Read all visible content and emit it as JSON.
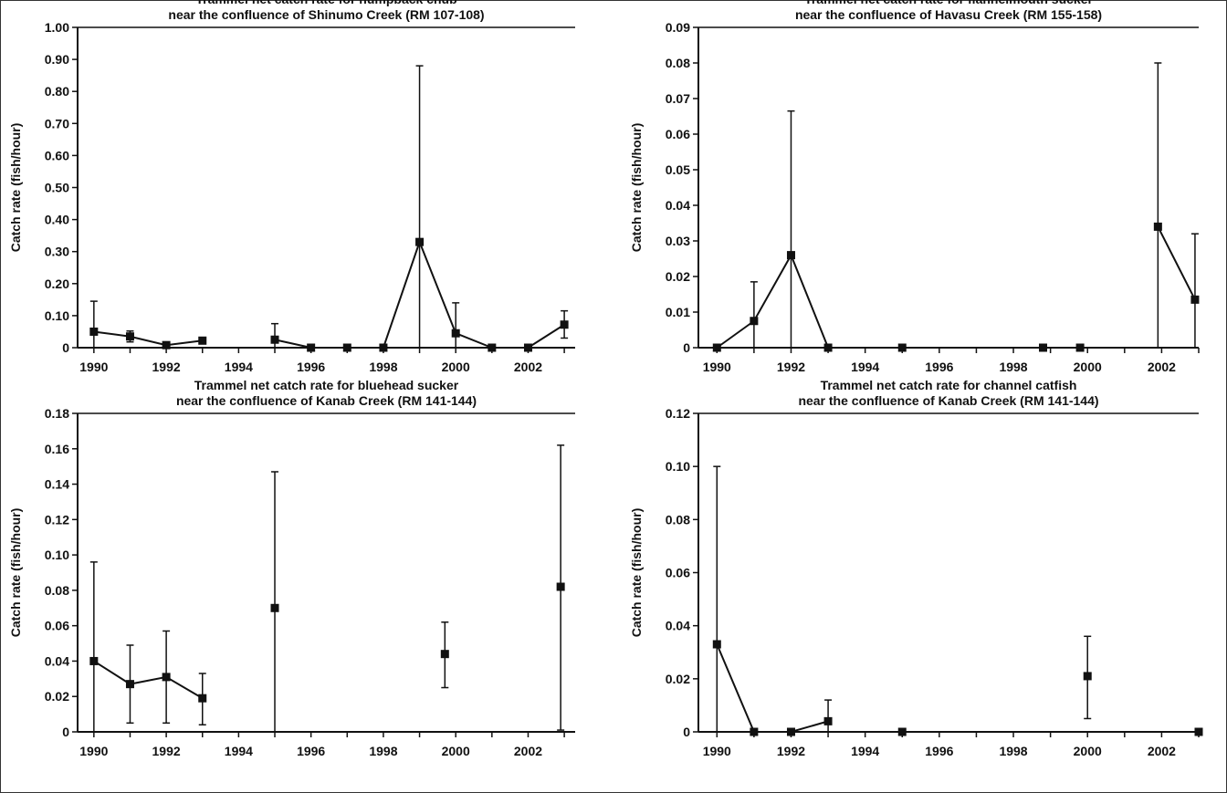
{
  "chart_data": [
    {
      "type": "line",
      "title": [
        "Trammel net catch rate for humpback chub",
        "near the confluence of Shinumo Creek (RM 107-108)"
      ],
      "xlabel": "",
      "ylabel": "Catch rate (fish/hour)",
      "xlim": [
        1989.55,
        2003.3
      ],
      "ylim": [
        0,
        1.0
      ],
      "xticks": [
        1990,
        1992,
        1994,
        1996,
        1998,
        2000,
        2002
      ],
      "yticks": [
        "0",
        "0.10",
        "0.20",
        "0.30",
        "0.40",
        "0.50",
        "0.60",
        "0.70",
        "0.80",
        "0.90",
        "1.00"
      ],
      "ytick_values": [
        0,
        0.1,
        0.2,
        0.3,
        0.4,
        0.5,
        0.6,
        0.7,
        0.8,
        0.9,
        1.0
      ],
      "segments": [
        [
          0,
          3
        ],
        [
          4,
          12
        ]
      ],
      "points": [
        {
          "x": 1990,
          "y": 0.05,
          "lo": 0,
          "hi": 0.145
        },
        {
          "x": 1991,
          "y": 0.035,
          "lo": 0.018,
          "hi": 0.052
        },
        {
          "x": 1992,
          "y": 0.008
        },
        {
          "x": 1993,
          "y": 0.022,
          "lo": 0.012,
          "hi": 0.032
        },
        {
          "x": 1995,
          "y": 0.025,
          "lo": 0,
          "hi": 0.075
        },
        {
          "x": 1996,
          "y": 0
        },
        {
          "x": 1997,
          "y": 0
        },
        {
          "x": 1998,
          "y": 0
        },
        {
          "x": 1999,
          "y": 0.33,
          "lo": 0,
          "hi": 0.88
        },
        {
          "x": 2000,
          "y": 0.045,
          "lo": 0,
          "hi": 0.14
        },
        {
          "x": 2001,
          "y": 0
        },
        {
          "x": 2002,
          "y": 0
        },
        {
          "x": 2003,
          "y": 0.072,
          "lo": 0.03,
          "hi": 0.115
        }
      ]
    },
    {
      "type": "line",
      "title": [
        "Trammel net catch rate for flannelmouth sucker",
        "near the confluence of Havasu Creek (RM 155-158)"
      ],
      "xlabel": "",
      "ylabel": "Catch rate (fish/hour)",
      "xlim": [
        1989.5,
        2003.0
      ],
      "ylim": [
        0,
        0.09
      ],
      "xticks": [
        1990,
        1992,
        1994,
        1996,
        1998,
        2000,
        2002
      ],
      "yticks": [
        "0",
        "0.01",
        "0.02",
        "0.03",
        "0.04",
        "0.05",
        "0.06",
        "0.07",
        "0.08",
        "0.09"
      ],
      "ytick_values": [
        0,
        0.01,
        0.02,
        0.03,
        0.04,
        0.05,
        0.06,
        0.07,
        0.08,
        0.09
      ],
      "segments": [
        [
          0,
          3
        ],
        [
          7,
          8
        ]
      ],
      "points": [
        {
          "x": 1990,
          "y": 0
        },
        {
          "x": 1991,
          "y": 0.0075,
          "lo": 0,
          "hi": 0.0185
        },
        {
          "x": 1992,
          "y": 0.026,
          "lo": 0,
          "hi": 0.0665
        },
        {
          "x": 1993,
          "y": 0
        },
        {
          "x": 1995,
          "y": 0
        },
        {
          "x": 1998.8,
          "y": 0
        },
        {
          "x": 1999.8,
          "y": 0
        },
        {
          "x": 2001.9,
          "y": 0.034,
          "lo": 0,
          "hi": 0.08
        },
        {
          "x": 2002.9,
          "y": 0.0135,
          "lo": 0,
          "hi": 0.032
        }
      ]
    },
    {
      "type": "line",
      "title": [
        "Trammel net catch rate for bluehead sucker",
        "near the confluence of Kanab Creek (RM 141-144)"
      ],
      "xlabel": "",
      "ylabel": "Catch rate (fish/hour)",
      "xlim": [
        1989.55,
        2003.3
      ],
      "ylim": [
        0,
        0.18
      ],
      "xticks": [
        1990,
        1992,
        1994,
        1996,
        1998,
        2000,
        2002
      ],
      "yticks": [
        "0",
        "0.02",
        "0.04",
        "0.06",
        "0.08",
        "0.10",
        "0.12",
        "0.14",
        "0.16",
        "0.18"
      ],
      "ytick_values": [
        0,
        0.02,
        0.04,
        0.06,
        0.08,
        0.1,
        0.12,
        0.14,
        0.16,
        0.18
      ],
      "segments": [
        [
          0,
          3
        ]
      ],
      "points": [
        {
          "x": 1990,
          "y": 0.04,
          "lo": 0,
          "hi": 0.096
        },
        {
          "x": 1991,
          "y": 0.027,
          "lo": 0.005,
          "hi": 0.049
        },
        {
          "x": 1992,
          "y": 0.031,
          "lo": 0.005,
          "hi": 0.057
        },
        {
          "x": 1993,
          "y": 0.019,
          "lo": 0.004,
          "hi": 0.033
        },
        {
          "x": 1995,
          "y": 0.07,
          "lo": 0,
          "hi": 0.147
        },
        {
          "x": 1999.7,
          "y": 0.044,
          "lo": 0.025,
          "hi": 0.062
        },
        {
          "x": 2002.9,
          "y": 0.082,
          "lo": 0.001,
          "hi": 0.162
        }
      ]
    },
    {
      "type": "line",
      "title": [
        "Trammel net catch rate for channel catfish",
        "near the confluence of Kanab Creek (RM 141-144)"
      ],
      "xlabel": "",
      "ylabel": "Catch rate (fish/hour)",
      "xlim": [
        1989.5,
        2003.0
      ],
      "ylim": [
        0,
        0.12
      ],
      "xticks": [
        1990,
        1992,
        1994,
        1996,
        1998,
        2000,
        2002
      ],
      "yticks": [
        "0",
        "0.02",
        "0.04",
        "0.06",
        "0.08",
        "0.10",
        "0.12"
      ],
      "ytick_values": [
        0,
        0.02,
        0.04,
        0.06,
        0.08,
        0.1,
        0.12
      ],
      "segments": [
        [
          0,
          3
        ]
      ],
      "points": [
        {
          "x": 1990,
          "y": 0.033,
          "lo": 0,
          "hi": 0.1
        },
        {
          "x": 1991,
          "y": 0
        },
        {
          "x": 1992,
          "y": 0
        },
        {
          "x": 1993,
          "y": 0.004,
          "lo": 0,
          "hi": 0.012
        },
        {
          "x": 1995,
          "y": 0
        },
        {
          "x": 2000,
          "y": 0.021,
          "lo": 0.005,
          "hi": 0.036
        },
        {
          "x": 2003,
          "y": 0
        }
      ]
    }
  ],
  "colors": {
    "line": "#111111",
    "background": "#ffffff"
  }
}
